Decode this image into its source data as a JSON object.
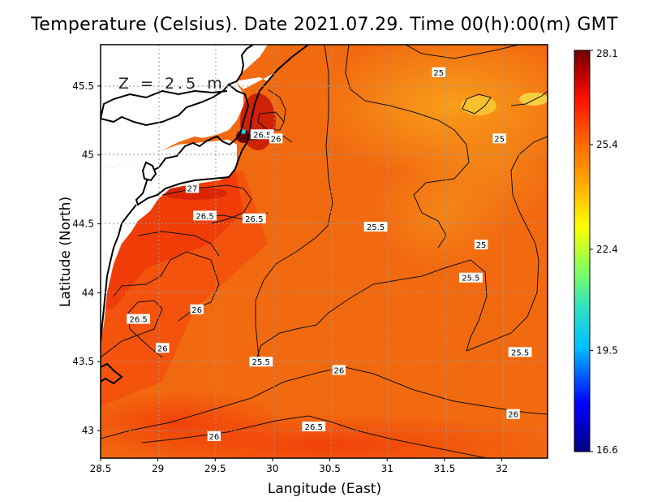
{
  "title": "Temperature (Celsius). Date 2021.07.29. Time 00(h):00(m)  GMT",
  "depth_label": "Z = 2.5 m",
  "xlabel": "Langitude (East)",
  "ylabel": "Latitude (North)",
  "chart_data": {
    "type": "heatmap",
    "variable": "Temperature (Celsius)",
    "xlim": [
      28.5,
      32.4
    ],
    "ylim": [
      42.8,
      45.8
    ],
    "x_ticks": [
      "28.5",
      "29",
      "29.5",
      "30",
      "30.5",
      "31",
      "31.5",
      "32"
    ],
    "y_ticks": [
      "43",
      "43.5",
      "44",
      "44.5",
      "45",
      "45.5"
    ],
    "colorbar": {
      "min": 16.6,
      "max": 28.1,
      "ticks": [
        "28.1",
        "25.4",
        "22.4",
        "19.5",
        "16.6"
      ],
      "colors": [
        "#00007f",
        "#0000ff",
        "#00bfff",
        "#40ff80",
        "#ffff00",
        "#ffb000",
        "#ff6000",
        "#ff0000",
        "#a00000",
        "#700000"
      ]
    },
    "contour_labels": [
      {
        "text": "25",
        "lon": 31.45,
        "lat": 45.6
      },
      {
        "text": "25",
        "lon": 31.98,
        "lat": 45.12
      },
      {
        "text": "26.5",
        "lon": 29.91,
        "lat": 45.15
      },
      {
        "text": "26",
        "lon": 30.03,
        "lat": 45.12
      },
      {
        "text": "27",
        "lon": 29.3,
        "lat": 44.76
      },
      {
        "text": "26.5",
        "lon": 29.41,
        "lat": 44.56
      },
      {
        "text": "26.5",
        "lon": 29.84,
        "lat": 44.54
      },
      {
        "text": "25.5",
        "lon": 30.9,
        "lat": 44.48
      },
      {
        "text": "25",
        "lon": 31.82,
        "lat": 44.35
      },
      {
        "text": "25.5",
        "lon": 31.73,
        "lat": 44.11
      },
      {
        "text": "26.5",
        "lon": 28.83,
        "lat": 43.81
      },
      {
        "text": "26",
        "lon": 29.34,
        "lat": 43.88
      },
      {
        "text": "26",
        "lon": 29.04,
        "lat": 43.6
      },
      {
        "text": "25.5",
        "lon": 29.9,
        "lat": 43.5
      },
      {
        "text": "26",
        "lon": 30.58,
        "lat": 43.44
      },
      {
        "text": "25.5",
        "lon": 32.16,
        "lat": 43.57
      },
      {
        "text": "26",
        "lon": 32.1,
        "lat": 43.12
      },
      {
        "text": "26.5",
        "lon": 30.36,
        "lat": 43.03
      },
      {
        "text": "26",
        "lon": 29.49,
        "lat": 42.96
      }
    ]
  }
}
